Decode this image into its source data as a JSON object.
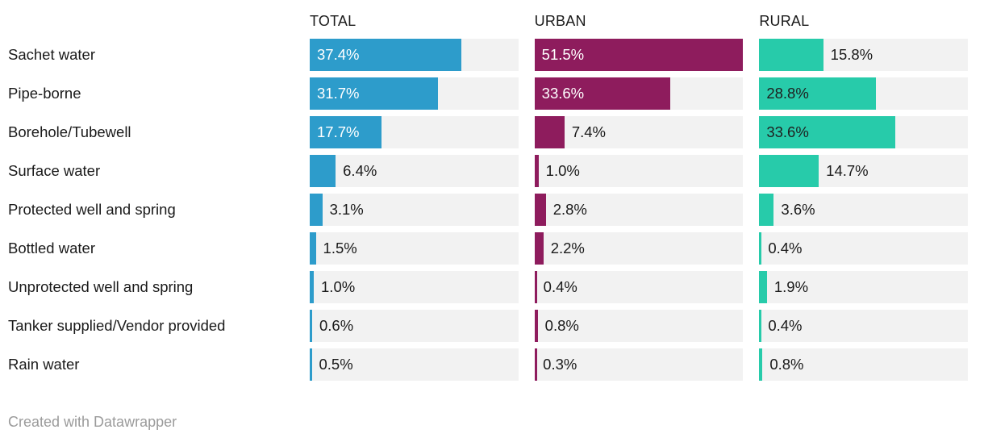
{
  "chart_data": {
    "type": "bar",
    "orientation": "horizontal",
    "title": "",
    "value_suffix": "%",
    "axis_max": 51.5,
    "track_color": "#f2f2f2",
    "outside_label_color": "#1a1a1a",
    "categories": [
      "Sachet water",
      "Pipe-borne",
      "Borehole/Tubewell",
      "Surface water",
      "Protected well and spring",
      "Bottled water",
      "Unprotected well and spring",
      "Tanker supplied/Vendor provided",
      "Rain water"
    ],
    "series": [
      {
        "name": "TOTAL",
        "color": "#2d9ccb",
        "label_color_inside": "#ffffff",
        "values": [
          37.4,
          31.7,
          17.7,
          6.4,
          3.1,
          1.5,
          1.0,
          0.6,
          0.5
        ],
        "labels_inside": [
          true,
          true,
          true,
          false,
          false,
          false,
          false,
          false,
          false
        ]
      },
      {
        "name": "URBAN",
        "color": "#8e1c5d",
        "label_color_inside": "#ffffff",
        "values": [
          51.5,
          33.6,
          7.4,
          1.0,
          2.8,
          2.2,
          0.4,
          0.8,
          0.3
        ],
        "labels_inside": [
          true,
          true,
          false,
          false,
          false,
          false,
          false,
          false,
          false
        ]
      },
      {
        "name": "RURAL",
        "color": "#27cbaa",
        "label_color_inside": "#1f1f1f",
        "values": [
          15.8,
          28.8,
          33.6,
          14.7,
          3.6,
          0.4,
          1.9,
          0.4,
          0.8
        ],
        "labels_inside": [
          false,
          true,
          true,
          false,
          false,
          false,
          false,
          false,
          false
        ]
      }
    ]
  },
  "footer": {
    "credit": "Created with Datawrapper"
  }
}
